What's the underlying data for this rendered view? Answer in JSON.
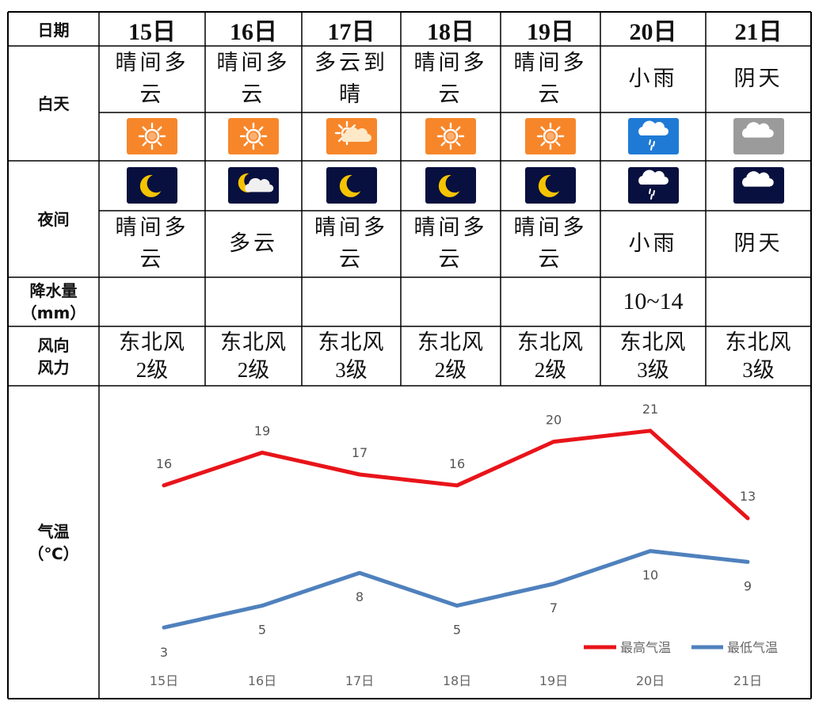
{
  "header": {
    "date_label": "日期",
    "days": [
      "15日",
      "16日",
      "17日",
      "18日",
      "19日",
      "20日",
      "21日"
    ]
  },
  "rows": {
    "day_label": "白天",
    "night_label": "夜间",
    "precip_label_1": "降水量",
    "precip_label_2": "（mm）",
    "wind_label_1": "风向",
    "wind_label_2": "风力",
    "temp_label_1": "气温",
    "temp_label_2": "（℃）"
  },
  "day_conditions": [
    [
      "晴间多",
      "云"
    ],
    [
      "晴间多",
      "云"
    ],
    [
      "多云到",
      "晴"
    ],
    [
      "晴间多",
      "云"
    ],
    [
      "晴间多",
      "云"
    ],
    [
      "小雨"
    ],
    [
      "阴天"
    ]
  ],
  "day_icons": [
    "sun-icon",
    "sun-icon",
    "sun-cloud-icon",
    "sun-icon",
    "sun-icon",
    "rain-cloud-icon",
    "cloud-icon"
  ],
  "night_icons": [
    "moon-icon",
    "moon-cloud-icon",
    "moon-icon",
    "moon-icon",
    "moon-icon",
    "rain-cloud-icon",
    "cloud-icon"
  ],
  "night_conditions": [
    [
      "晴间多",
      "云"
    ],
    [
      "多云"
    ],
    [
      "晴间多",
      "云"
    ],
    [
      "晴间多",
      "云"
    ],
    [
      "晴间多",
      "云"
    ],
    [
      "小雨"
    ],
    [
      "阴天"
    ]
  ],
  "precipitation": [
    "",
    "",
    "",
    "",
    "",
    "10~14",
    ""
  ],
  "wind": [
    {
      "dir": "东北风",
      "level": "2级"
    },
    {
      "dir": "东北风",
      "level": "2级"
    },
    {
      "dir": "东北风",
      "level": "3级"
    },
    {
      "dir": "东北风",
      "level": "2级"
    },
    {
      "dir": "东北风",
      "level": "2级"
    },
    {
      "dir": "东北风",
      "level": "3级"
    },
    {
      "dir": "东北风",
      "level": "3级"
    }
  ],
  "colors": {
    "high": "#e8141a",
    "low": "#4f81bd",
    "sun_bg": "#f7862a",
    "rain_bg": "#1f7ad6",
    "cloudy_bg": "#9b9b9b",
    "night_bg": "#08103f"
  },
  "chart_data": {
    "type": "line",
    "x": [
      "15日",
      "16日",
      "17日",
      "18日",
      "19日",
      "20日",
      "21日"
    ],
    "series": [
      {
        "name": "最高气温",
        "values": [
          16,
          19,
          17,
          16,
          20,
          21,
          13
        ]
      },
      {
        "name": "最低气温",
        "values": [
          3,
          5,
          8,
          5,
          7,
          10,
          9
        ]
      }
    ],
    "legend": "bottom-right",
    "grid": false
  }
}
